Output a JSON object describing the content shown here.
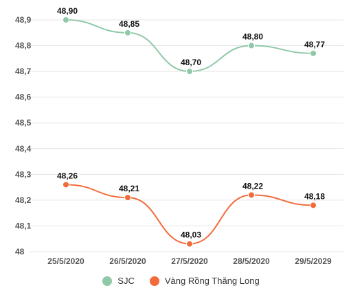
{
  "chart_data": {
    "type": "line",
    "categories": [
      "25/5/2020",
      "26/5/2020",
      "27/5/2020",
      "28/5/2020",
      "29/5/2029"
    ],
    "series": [
      {
        "name": "SJC",
        "color": "#8fc9a8",
        "values": [
          48.9,
          48.85,
          48.7,
          48.8,
          48.77
        ],
        "labels": [
          "48,90",
          "48,85",
          "48,70",
          "48,80",
          "48,77"
        ]
      },
      {
        "name": "Vàng Rồng Thăng Long",
        "color": "#f26b3a",
        "values": [
          48.26,
          48.21,
          48.03,
          48.22,
          48.18
        ],
        "labels": [
          "48,26",
          "48,21",
          "48,03",
          "48,22",
          "48,18"
        ]
      }
    ],
    "yticks": [
      48,
      48.1,
      48.2,
      48.3,
      48.4,
      48.5,
      48.6,
      48.7,
      48.8,
      48.9
    ],
    "ytick_labels": [
      "48",
      "48,1",
      "48,2",
      "48,3",
      "48,4",
      "48,5",
      "48,6",
      "48,7",
      "48,8",
      "48,9"
    ],
    "ylim": [
      48,
      48.9
    ],
    "grid": true,
    "legend_position": "bottom"
  }
}
